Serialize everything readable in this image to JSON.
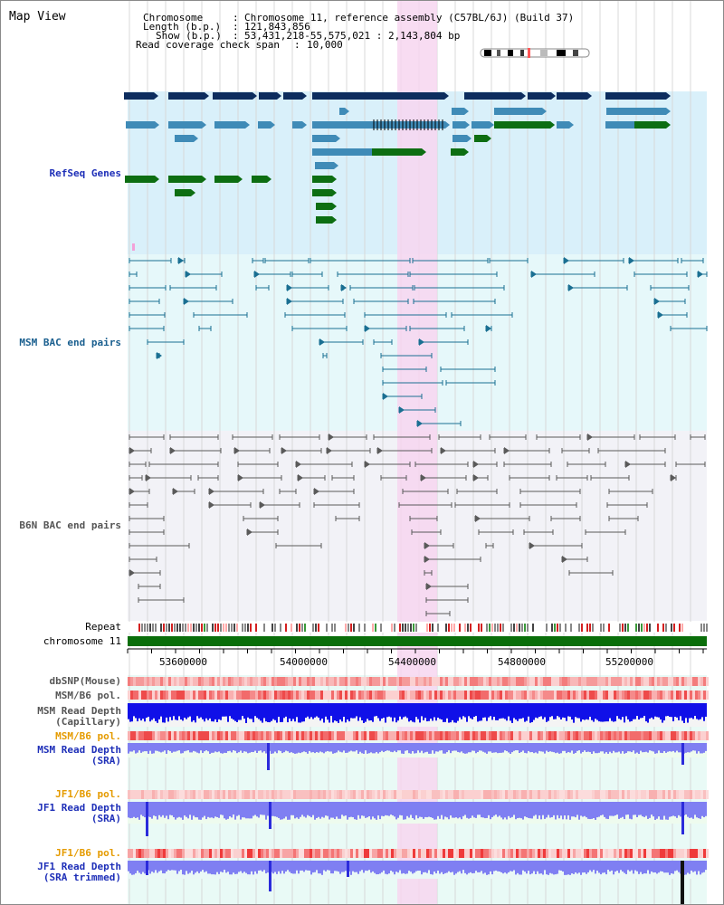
{
  "header": {
    "title": "Map View",
    "chromosome_label": "Chromosome",
    "chromosome_value": "Chromosome 11, reference assembly (C57BL/6J) (Build 37)",
    "length_label": "Length (b.p.)",
    "length_value": "121,843,856",
    "show_label": "Show (b.p.)",
    "show_value": "53,431,218-55,575,021 : 2,143,804 bp",
    "coverage_label": "Read coverage check span",
    "coverage_value": "10,000"
  },
  "tracks": {
    "refseq": "RefSeq Genes",
    "msm_bac": "MSM BAC end pairs",
    "b6n_bac": "B6N BAC end pairs",
    "repeat": "Repeat",
    "chromosome": "chromosome 11",
    "dbsnp": "dbSNP(Mouse)",
    "msm_b6_pol_1": "MSM/B6 pol.",
    "msm_depth_cap_1": "MSM Read Depth",
    "msm_depth_cap_2": "(Capillary)",
    "msm_b6_pol_2": "MSM/B6 pol.",
    "msm_depth_sra_1": "MSM Read Depth",
    "msm_depth_sra_2": "(SRA)",
    "jf1_b6_pol_1": "JF1/B6 pol.",
    "jf1_depth_sra_1": "JF1 Read Depth",
    "jf1_depth_sra_2": "(SRA)",
    "jf1_b6_pol_2": "JF1/B6 pol.",
    "jf1_depth_trim_1": "JF1 Read Depth",
    "jf1_depth_trim_2": "(SRA trimmed)"
  },
  "axis": {
    "ticks": [
      "53600000",
      "54000000",
      "54400000",
      "54800000",
      "55200000"
    ]
  },
  "colors": {
    "refseq_dark": "#0d2d5e",
    "refseq_mid": "#3f8bb7",
    "refseq_green": "#0d6e12",
    "msm_bac": "#1a6f92",
    "b6n_bac": "#5a5a5a",
    "highlight": "#f7d6f0",
    "chromosome_bar": "#0a6e0a",
    "depth_capillary": "#1010e8",
    "depth_sra": "#7f7ff2"
  }
}
